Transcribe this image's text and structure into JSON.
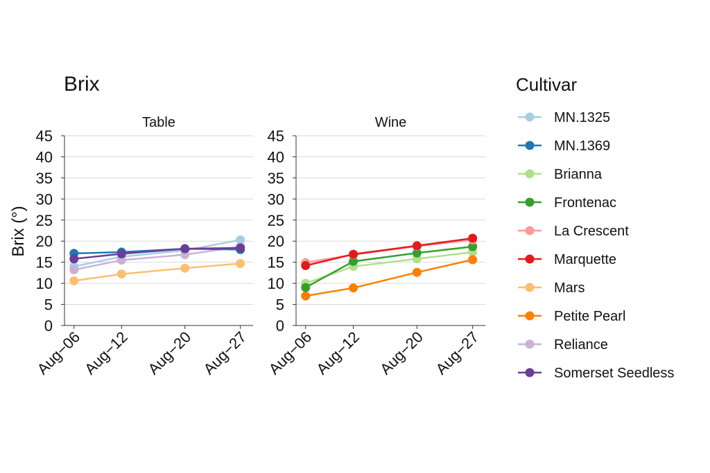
{
  "chart_data": {
    "type": "line",
    "title": "Brix",
    "ylabel": "Brix (°)",
    "xlabel": "",
    "ylim": [
      0,
      45
    ],
    "yticks": [
      0,
      5,
      10,
      15,
      20,
      25,
      30,
      35,
      40,
      45
    ],
    "grid": true,
    "categories": [
      "Aug−06",
      "Aug−12",
      "Aug−20",
      "Aug−27"
    ],
    "x_positions": [
      6,
      12,
      20,
      27
    ],
    "legend": {
      "title": "Cultivar",
      "placement": "right",
      "entries": [
        {
          "name": "MN.1325",
          "color": "#a6cee3"
        },
        {
          "name": "MN.1369",
          "color": "#1f78b4"
        },
        {
          "name": "Brianna",
          "color": "#b2df8a"
        },
        {
          "name": "Frontenac",
          "color": "#33a02c"
        },
        {
          "name": "La Crescent",
          "color": "#fb9a99"
        },
        {
          "name": "Marquette",
          "color": "#e31a1c"
        },
        {
          "name": "Mars",
          "color": "#fdbf6f"
        },
        {
          "name": "Petite Pearl",
          "color": "#ff7f00"
        },
        {
          "name": "Reliance",
          "color": "#cab2d6"
        },
        {
          "name": "Somerset Seedless",
          "color": "#6a3d9a"
        }
      ]
    },
    "panels": [
      {
        "facet": "Table",
        "series": [
          {
            "name": "MN.1325",
            "values": [
              14.0,
              16.3,
              17.8,
              20.3
            ]
          },
          {
            "name": "Mars",
            "values": [
              10.6,
              12.2,
              13.6,
              14.7
            ]
          },
          {
            "name": "Reliance",
            "values": [
              13.2,
              15.5,
              16.8,
              18.7
            ]
          },
          {
            "name": "MN.1369",
            "values": [
              17.1,
              17.4,
              18.2,
              18.0
            ]
          },
          {
            "name": "Somerset Seedless",
            "values": [
              15.8,
              17.0,
              18.2,
              18.4
            ]
          }
        ]
      },
      {
        "facet": "Wine",
        "series": [
          {
            "name": "Brianna",
            "values": [
              10.0,
              14.0,
              15.8,
              17.4
            ]
          },
          {
            "name": "Petite Pearl",
            "values": [
              7.0,
              8.9,
              12.6,
              15.6
            ]
          },
          {
            "name": "Frontenac",
            "values": [
              9.0,
              15.2,
              17.2,
              18.7
            ]
          },
          {
            "name": "La Crescent",
            "values": [
              14.9,
              16.8,
              18.8,
              20.3
            ]
          },
          {
            "name": "Marquette",
            "values": [
              14.2,
              16.9,
              18.9,
              20.7
            ]
          }
        ]
      }
    ]
  }
}
